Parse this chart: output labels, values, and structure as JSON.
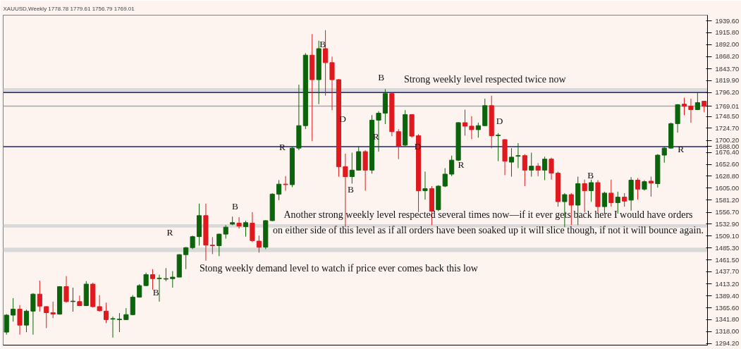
{
  "chart_data": {
    "type": "candlestick",
    "title": "XAUUSD,Weekly  1778.78 1779.61 1756.79 1769.01",
    "categories": [
      null,
      null,
      null,
      null,
      null,
      null,
      null,
      null,
      null,
      null,
      null,
      null,
      null,
      null,
      null,
      null,
      null,
      null,
      null,
      null,
      null,
      null,
      null,
      null,
      null,
      null,
      null,
      null,
      null,
      null,
      null,
      null,
      null,
      null,
      null,
      null,
      null,
      null,
      null,
      null,
      null,
      null,
      null,
      null,
      null,
      null,
      null,
      null,
      null,
      null,
      null,
      null,
      null,
      null,
      null,
      null,
      null,
      null,
      null,
      null,
      null,
      null,
      null,
      null,
      null,
      null,
      null,
      null,
      null,
      null,
      null,
      null,
      null,
      null,
      null,
      null,
      null,
      null,
      null,
      null,
      null,
      null,
      null,
      null,
      null,
      null,
      null,
      null,
      null,
      null,
      null,
      null,
      null,
      null,
      null,
      null,
      null,
      null,
      null,
      null,
      null,
      null,
      null,
      null,
      null,
      null
    ],
    "ohlc": [
      [
        1317,
        1353,
        1312,
        1351
      ],
      [
        1351,
        1385,
        1338,
        1363
      ],
      [
        1363,
        1371,
        1312,
        1331
      ],
      [
        1331,
        1362,
        1317,
        1359
      ],
      [
        1359,
        1395,
        1312,
        1393
      ],
      [
        1393,
        1420,
        1358,
        1369
      ],
      [
        1368,
        1369,
        1325,
        1356
      ],
      [
        1356,
        1378,
        1345,
        1353
      ],
      [
        1353,
        1409,
        1352,
        1408
      ],
      [
        1408,
        1429,
        1376,
        1378
      ],
      [
        1378,
        1406,
        1358,
        1379
      ],
      [
        1378,
        1390,
        1369,
        1370
      ],
      [
        1370,
        1419,
        1369,
        1413
      ],
      [
        1413,
        1416,
        1366,
        1368
      ],
      [
        1368,
        1391,
        1358,
        1360
      ],
      [
        1359,
        1376,
        1335,
        1342
      ],
      [
        1343,
        1348,
        1306,
        1344
      ],
      [
        1342,
        1355,
        1317,
        1343
      ],
      [
        1342,
        1365,
        1341,
        1352
      ],
      [
        1352,
        1391,
        1351,
        1387
      ],
      [
        1387,
        1413,
        1386,
        1410
      ],
      [
        1410,
        1436,
        1409,
        1432
      ],
      [
        1432,
        1443,
        1402,
        1424
      ],
      [
        1424,
        1432,
        1378,
        1425
      ],
      [
        1423,
        1445,
        1419,
        1424
      ],
      [
        1424,
        1439,
        1406,
        1427
      ],
      [
        1427,
        1473,
        1427,
        1472
      ],
      [
        1472,
        1487,
        1443,
        1486
      ],
      [
        1486,
        1510,
        1483,
        1508
      ],
      [
        1508,
        1574,
        1490,
        1550
      ],
      [
        1550,
        1574,
        1460,
        1491
      ],
      [
        1491,
        1507,
        1473,
        1490
      ],
      [
        1490,
        1514,
        1469,
        1513
      ],
      [
        1513,
        1531,
        1504,
        1527
      ],
      [
        1533,
        1548,
        1531,
        1536
      ],
      [
        1535,
        1547,
        1524,
        1529
      ],
      [
        1528,
        1540,
        1508,
        1536
      ],
      [
        1535,
        1557,
        1497,
        1500
      ],
      [
        1499,
        1510,
        1476,
        1487
      ],
      [
        1487,
        1541,
        1483,
        1540
      ],
      [
        1540,
        1595,
        1539,
        1593
      ],
      [
        1593,
        1621,
        1581,
        1613
      ],
      [
        1613,
        1629,
        1600,
        1612
      ],
      [
        1612,
        1688,
        1607,
        1685
      ],
      [
        1685,
        1812,
        1681,
        1730
      ],
      [
        1730,
        1875,
        1723,
        1871
      ],
      [
        1871,
        1913,
        1699,
        1822
      ],
      [
        1822,
        1900,
        1773,
        1884
      ],
      [
        1884,
        1921,
        1790,
        1856
      ],
      [
        1856,
        1868,
        1761,
        1822
      ],
      [
        1822,
        1823,
        1628,
        1648
      ],
      [
        1648,
        1674,
        1527,
        1628
      ],
      [
        1628,
        1676,
        1614,
        1641
      ],
      [
        1641,
        1689,
        1640,
        1678
      ],
      [
        1678,
        1681,
        1600,
        1641
      ],
      [
        1641,
        1751,
        1634,
        1741
      ],
      [
        1741,
        1759,
        1678,
        1755
      ],
      [
        1755,
        1803,
        1733,
        1794
      ],
      [
        1794,
        1796,
        1709,
        1718
      ],
      [
        1718,
        1723,
        1663,
        1689
      ],
      [
        1691,
        1761,
        1689,
        1752
      ],
      [
        1752,
        1753,
        1706,
        1709
      ],
      [
        1710,
        1713,
        1557,
        1600
      ],
      [
        1600,
        1638,
        1582,
        1604
      ],
      [
        1604,
        1609,
        1531,
        1559
      ],
      [
        1562,
        1611,
        1559,
        1609
      ],
      [
        1609,
        1645,
        1607,
        1633
      ],
      [
        1633,
        1670,
        1629,
        1661
      ],
      [
        1661,
        1737,
        1659,
        1736
      ],
      [
        1736,
        1762,
        1710,
        1729
      ],
      [
        1729,
        1749,
        1703,
        1722
      ],
      [
        1722,
        1736,
        1706,
        1730
      ],
      [
        1730,
        1784,
        1729,
        1770
      ],
      [
        1770,
        1790,
        1685,
        1710
      ],
      [
        1710,
        1715,
        1659,
        1711
      ],
      [
        1702,
        1703,
        1631,
        1659
      ],
      [
        1657,
        1685,
        1628,
        1667
      ],
      [
        1669,
        1695,
        1645,
        1670
      ],
      [
        1670,
        1673,
        1609,
        1641
      ],
      [
        1641,
        1676,
        1628,
        1649
      ],
      [
        1649,
        1655,
        1629,
        1641
      ],
      [
        1641,
        1668,
        1621,
        1663
      ],
      [
        1663,
        1666,
        1622,
        1635
      ],
      [
        1635,
        1638,
        1568,
        1578
      ],
      [
        1578,
        1595,
        1527,
        1592
      ],
      [
        1592,
        1595,
        1531,
        1571
      ],
      [
        1571,
        1628,
        1531,
        1614
      ],
      [
        1614,
        1622,
        1557,
        1600
      ],
      [
        1600,
        1622,
        1578,
        1616
      ],
      [
        1616,
        1621,
        1554,
        1568
      ],
      [
        1568,
        1598,
        1554,
        1595
      ],
      [
        1595,
        1622,
        1568,
        1576
      ],
      [
        1576,
        1598,
        1554,
        1587
      ],
      [
        1587,
        1595,
        1568,
        1579
      ],
      [
        1581,
        1627,
        1560,
        1621
      ],
      [
        1621,
        1625,
        1582,
        1603
      ],
      [
        1603,
        1621,
        1600,
        1618
      ],
      [
        1619,
        1628,
        1588,
        1615
      ],
      [
        1614,
        1673,
        1606,
        1671
      ],
      [
        1671,
        1688,
        1656,
        1685
      ],
      [
        1685,
        1736,
        1684,
        1734
      ],
      [
        1734,
        1773,
        1716,
        1772
      ],
      [
        1773,
        1786,
        1751,
        1769
      ],
      [
        1769,
        1784,
        1736,
        1762
      ],
      [
        1762,
        1795,
        1761,
        1776
      ],
      [
        1778.78,
        1779.61,
        1756.79,
        1769.01
      ]
    ],
    "colors": [
      "#0b640b",
      "#0b640b",
      "#e0191e",
      "#0b640b",
      "#0b640b",
      "#e0191e",
      "#e0191e",
      "#e0191e",
      "#0b640b",
      "#e0191e",
      "#0b640b",
      "#e0191e",
      "#0b640b",
      "#e0191e",
      "#e0191e",
      "#e0191e",
      "#0b640b",
      "#0b640b",
      "#0b640b",
      "#0b640b",
      "#0b640b",
      "#0b640b",
      "#e0191e",
      "#0b640b",
      "#0b640b",
      "#0b640b",
      "#0b640b",
      "#0b640b",
      "#0b640b",
      "#0b640b",
      "#e0191e",
      "#e0191e",
      "#0b640b",
      "#0b640b",
      "#0b640b",
      "#e0191e",
      "#0b640b",
      "#e0191e",
      "#e0191e",
      "#0b640b",
      "#0b640b",
      "#0b640b",
      "#e0191e",
      "#0b640b",
      "#0b640b",
      "#0b640b",
      "#e0191e",
      "#0b640b",
      "#e0191e",
      "#e0191e",
      "#e0191e",
      "#e0191e",
      "#0b640b",
      "#0b640b",
      "#e0191e",
      "#0b640b",
      "#0b640b",
      "#0b640b",
      "#e0191e",
      "#e0191e",
      "#0b640b",
      "#e0191e",
      "#e0191e",
      "#0b640b",
      "#e0191e",
      "#0b640b",
      "#0b640b",
      "#0b640b",
      "#0b640b",
      "#e0191e",
      "#e0191e",
      "#0b640b",
      "#0b640b",
      "#e0191e",
      "#0b640b",
      "#e0191e",
      "#0b640b",
      "#0b640b",
      "#e0191e",
      "#0b640b",
      "#e0191e",
      "#0b640b",
      "#e0191e",
      "#e0191e",
      "#0b640b",
      "#e0191e",
      "#0b640b",
      "#e0191e",
      "#0b640b",
      "#e0191e",
      "#0b640b",
      "#e0191e",
      "#0b640b",
      "#e0191e",
      "#0b640b",
      "#e0191e",
      "#0b640b",
      "#e0191e",
      "#0b640b",
      "#0b640b",
      "#0b640b",
      "#0b640b",
      "#e0191e",
      "#e0191e",
      "#0b640b",
      "#e0191e"
    ],
    "ylim": [
      1291,
      1951
    ],
    "yticks": [
      {
        "value": 1939.6,
        "label": "1939.60"
      },
      {
        "value": 1915.8,
        "label": "1915.80"
      },
      {
        "value": 1892.0,
        "label": "1892.00"
      },
      {
        "value": 1868.2,
        "label": "1868.20"
      },
      {
        "value": 1843.7,
        "label": "1843.70"
      },
      {
        "value": 1819.9,
        "label": "1819.90"
      },
      {
        "value": 1748.5,
        "label": "1748.50"
      },
      {
        "value": 1724.7,
        "label": "1724.70"
      },
      {
        "value": 1700.2,
        "label": "1700.20"
      },
      {
        "value": 1676.4,
        "label": "1676.40"
      },
      {
        "value": 1652.6,
        "label": "1652.60"
      },
      {
        "value": 1628.8,
        "label": "1628.80"
      },
      {
        "value": 1605.0,
        "label": "1605.00"
      },
      {
        "value": 1581.2,
        "label": "1581.20"
      },
      {
        "value": 1556.7,
        "label": "1556.70"
      },
      {
        "value": 1532.9,
        "label": "1532.90"
      },
      {
        "value": 1509.1,
        "label": "1509.10"
      },
      {
        "value": 1485.3,
        "label": "1485.30"
      },
      {
        "value": 1461.5,
        "label": "1461.50"
      },
      {
        "value": 1437.7,
        "label": "1437.70"
      },
      {
        "value": 1413.2,
        "label": "1413.20"
      },
      {
        "value": 1389.4,
        "label": "1389.40"
      },
      {
        "value": 1365.6,
        "label": "1365.60"
      },
      {
        "value": 1341.8,
        "label": "1341.80"
      },
      {
        "value": 1318.0,
        "label": "1318.00"
      },
      {
        "value": 1294.2,
        "label": "1294.20"
      }
    ],
    "tick_labels": "y",
    "grid": false,
    "ref_lines": [
      {
        "axis": "y",
        "value": 1796.2,
        "label": "1796.20",
        "color": "#20207a"
      },
      {
        "axis": "y",
        "value": 1688.0,
        "label": "1688.00",
        "color": "#20207a"
      },
      {
        "axis": "y",
        "value": 1769.01,
        "label": "1769.01",
        "color": "#a8a8a8"
      }
    ],
    "bands": [
      {
        "axis": "y",
        "from": 1796,
        "to": 1805,
        "color": "#d9d9d9"
      },
      {
        "axis": "y",
        "from": 1526,
        "to": 1533,
        "color": "#d9d9d9"
      },
      {
        "axis": "y",
        "from": 1477,
        "to": 1486,
        "color": "#d9d9d9"
      }
    ],
    "annotations": [
      "R",
      "B",
      "B",
      "R",
      "B",
      "D",
      "B",
      "B",
      "R",
      "D",
      "R",
      "D",
      "B",
      "R",
      "Strong weekly level respected twice now",
      "Another strong weekly level respected several times now—if it ever gets back here I would have orders\non either side of this level as if all orders have been soaked up it will slice though, if not it will bounce again.",
      "Stong weekly demand level to watch if price ever comes back this low"
    ]
  }
}
